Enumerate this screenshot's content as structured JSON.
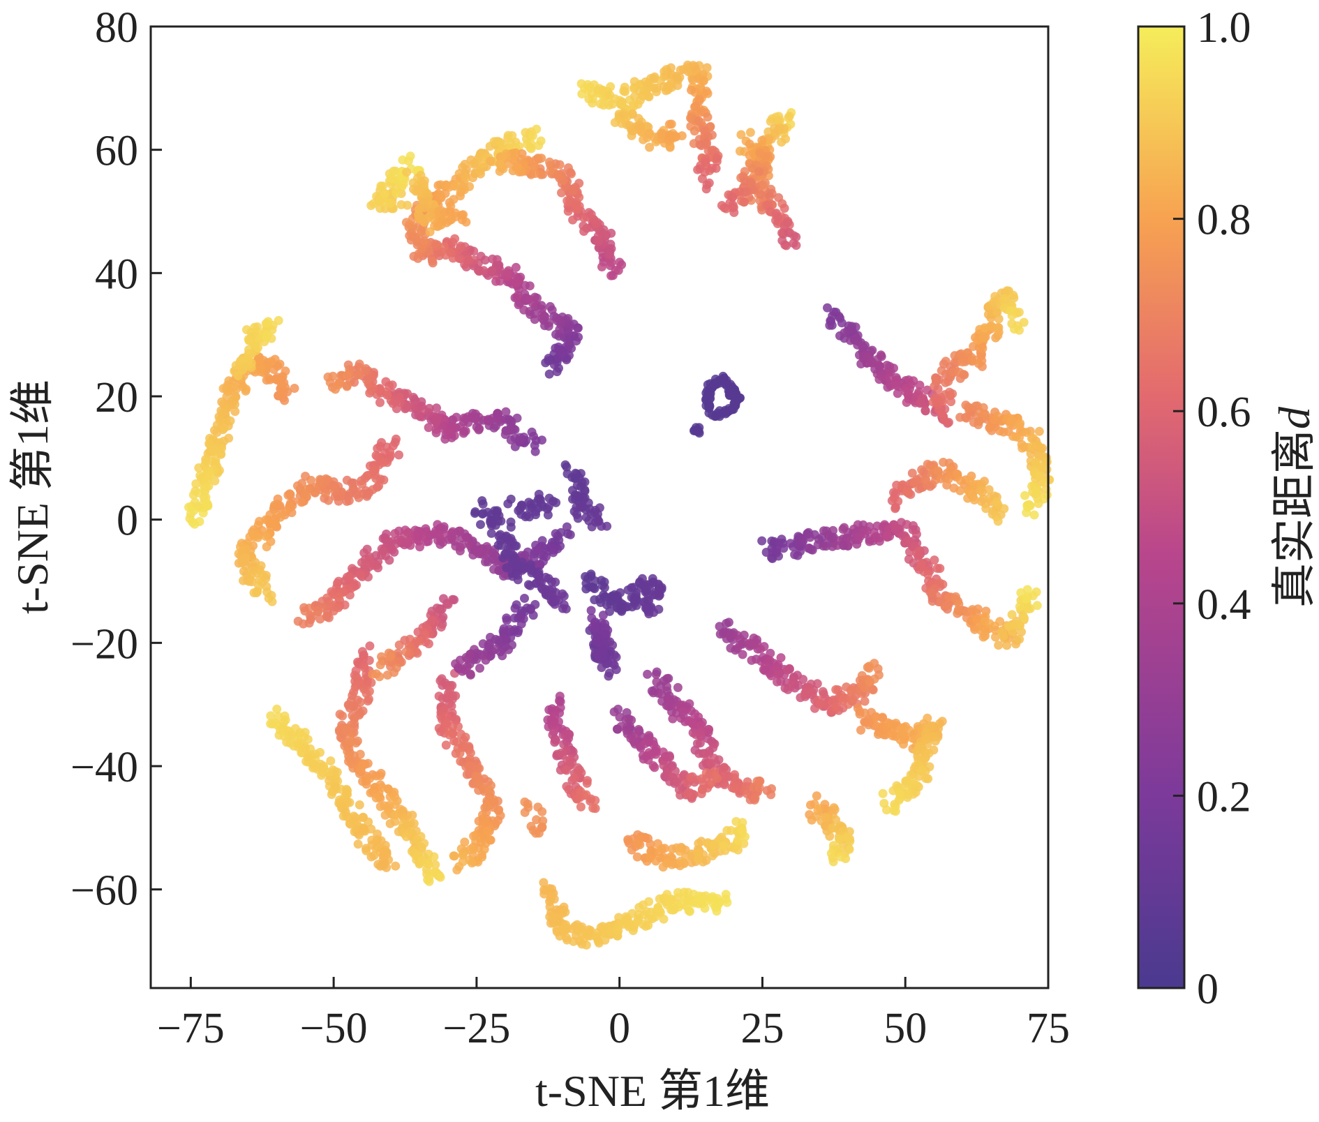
{
  "chart_data": {
    "type": "scatter",
    "xlabel": "t-SNE 第1维",
    "ylabel": "t-SNE 第1维",
    "xlim": [
      -82,
      75
    ],
    "ylim": [
      -76,
      80
    ],
    "xticks": [
      -75,
      -50,
      -25,
      0,
      25,
      50,
      75
    ],
    "yticks": [
      -60,
      -40,
      -20,
      0,
      20,
      40,
      60,
      80
    ],
    "xtick_labels": [
      "−75",
      "−50",
      "−25",
      "0",
      "25",
      "50",
      "75"
    ],
    "ytick_labels": [
      "−60",
      "−40",
      "−20",
      "0",
      "20",
      "40",
      "60",
      "80"
    ],
    "grid": false,
    "colormap": [
      "#4a3a8f",
      "#7c3a9a",
      "#b8468c",
      "#e36b6e",
      "#f7a251",
      "#f5ed5a"
    ],
    "colorbar": {
      "label": "真实距离",
      "label_var": "d",
      "range": [
        0,
        1
      ],
      "ticks": [
        0,
        0.2,
        0.4,
        0.6,
        0.8,
        1.0
      ],
      "tick_labels": [
        "0",
        "0.2",
        "0.4",
        "0.6",
        "0.8",
        "1.0"
      ]
    },
    "clusters": [
      {
        "name": "center-ring",
        "path": [
          [
            15.5,
            17.5
          ],
          [
            15.5,
            21.5
          ],
          [
            18,
            23
          ],
          [
            21,
            19.5
          ],
          [
            19,
            17.5
          ],
          [
            16.5,
            17
          ]
        ],
        "d": [
          0.05,
          0.05
        ]
      },
      {
        "name": "center-dot",
        "path": [
          [
            19.5,
            20.5
          ],
          [
            19.5,
            20.5
          ]
        ],
        "d": [
          0.05,
          0.05
        ]
      },
      {
        "name": "center-stray",
        "path": [
          [
            13.5,
            14.5
          ],
          [
            13.5,
            14.5
          ]
        ],
        "d": [
          0.05,
          0.05
        ]
      },
      {
        "name": "arm-n1",
        "path": [
          [
            -12,
            24
          ],
          [
            -8,
            30
          ],
          [
            -14,
            34
          ],
          [
            -20,
            40
          ],
          [
            -30,
            44
          ],
          [
            -35,
            43
          ]
        ],
        "d": [
          0.12,
          0.7
        ]
      },
      {
        "name": "arm-n1b",
        "path": [
          [
            -35,
            43
          ],
          [
            -36,
            50
          ],
          [
            -30,
            53
          ],
          [
            -22,
            60
          ],
          [
            -15,
            62
          ]
        ],
        "d": [
          0.7,
          0.95
        ]
      },
      {
        "name": "arm-n2",
        "path": [
          [
            -1,
            40
          ],
          [
            -3,
            46
          ],
          [
            -7,
            50
          ],
          [
            -10,
            56
          ],
          [
            -16,
            58
          ],
          [
            -22,
            58
          ]
        ],
        "d": [
          0.45,
          0.85
        ]
      },
      {
        "name": "arm-n3",
        "path": [
          [
            -38,
            52
          ],
          [
            -42,
            52
          ],
          [
            -36,
            58
          ]
        ],
        "d": [
          0.9,
          0.97
        ]
      },
      {
        "name": "arm-n4",
        "path": [
          [
            -36,
            56
          ],
          [
            -33,
            48
          ],
          [
            -28,
            50
          ]
        ],
        "d": [
          0.9,
          0.8
        ]
      },
      {
        "name": "arm-top",
        "path": [
          [
            -6,
            70
          ],
          [
            0,
            68
          ],
          [
            5,
            70
          ],
          [
            10,
            72
          ],
          [
            14,
            73
          ]
        ],
        "d": [
          0.95,
          0.85
        ]
      },
      {
        "name": "arm-top2",
        "path": [
          [
            14,
            72
          ],
          [
            14,
            64
          ],
          [
            16,
            58
          ],
          [
            15,
            55
          ]
        ],
        "d": [
          0.85,
          0.6
        ]
      },
      {
        "name": "arm-top3",
        "path": [
          [
            0,
            66
          ],
          [
            4,
            63
          ],
          [
            8,
            61
          ],
          [
            10,
            64
          ]
        ],
        "d": [
          0.9,
          0.8
        ]
      },
      {
        "name": "arm-nr",
        "path": [
          [
            29,
            66
          ],
          [
            27,
            62
          ],
          [
            25,
            58
          ],
          [
            24,
            54
          ],
          [
            28,
            49
          ],
          [
            30,
            45
          ]
        ],
        "d": [
          0.95,
          0.55
        ]
      },
      {
        "name": "arm-nr2",
        "path": [
          [
            22,
            62
          ],
          [
            25,
            58
          ],
          [
            21,
            52
          ],
          [
            19,
            50
          ]
        ],
        "d": [
          0.85,
          0.6
        ]
      },
      {
        "name": "arm-ne",
        "path": [
          [
            37,
            33
          ],
          [
            42,
            28
          ],
          [
            45,
            25
          ],
          [
            48,
            22
          ],
          [
            52,
            20
          ],
          [
            56,
            17
          ]
        ],
        "d": [
          0.2,
          0.55
        ]
      },
      {
        "name": "arm-ne2",
        "path": [
          [
            56,
            17
          ],
          [
            57,
            24
          ],
          [
            62,
            26
          ],
          [
            64,
            30
          ],
          [
            67,
            36
          ],
          [
            70,
            32
          ]
        ],
        "d": [
          0.6,
          0.95
        ]
      },
      {
        "name": "arm-e",
        "path": [
          [
            60,
            18
          ],
          [
            65,
            16
          ],
          [
            70,
            15
          ],
          [
            73,
            12
          ],
          [
            74,
            5
          ],
          [
            72,
            2
          ]
        ],
        "d": [
          0.7,
          0.97
        ]
      },
      {
        "name": "arm-e2",
        "path": [
          [
            48,
            3
          ],
          [
            52,
            6
          ],
          [
            56,
            8
          ],
          [
            60,
            6
          ],
          [
            64,
            4
          ],
          [
            66,
            1
          ]
        ],
        "d": [
          0.6,
          0.9
        ]
      },
      {
        "name": "arm-e3",
        "path": [
          [
            26,
            -5
          ],
          [
            32,
            -4
          ],
          [
            38,
            -3
          ],
          [
            44,
            -2
          ],
          [
            50,
            -2
          ],
          [
            54,
            -8
          ]
        ],
        "d": [
          0.15,
          0.6
        ]
      },
      {
        "name": "arm-e4",
        "path": [
          [
            54,
            -8
          ],
          [
            56,
            -13
          ],
          [
            60,
            -14
          ],
          [
            64,
            -17
          ],
          [
            68,
            -19
          ],
          [
            72,
            -12
          ]
        ],
        "d": [
          0.6,
          0.97
        ]
      },
      {
        "name": "arm-se",
        "path": [
          [
            18,
            -18
          ],
          [
            25,
            -22
          ],
          [
            30,
            -26
          ],
          [
            36,
            -30
          ],
          [
            42,
            -28
          ],
          [
            45,
            -24
          ]
        ],
        "d": [
          0.3,
          0.75
        ]
      },
      {
        "name": "arm-se2",
        "path": [
          [
            42,
            -32
          ],
          [
            48,
            -34
          ],
          [
            52,
            -36
          ],
          [
            55,
            -33
          ],
          [
            52,
            -42
          ],
          [
            47,
            -46
          ]
        ],
        "d": [
          0.75,
          0.95
        ]
      },
      {
        "name": "arm-se3",
        "path": [
          [
            34,
            -46
          ],
          [
            38,
            -50
          ],
          [
            40,
            -53
          ],
          [
            38,
            -55
          ]
        ],
        "d": [
          0.8,
          0.95
        ]
      },
      {
        "name": "arm-s1",
        "path": [
          [
            6,
            -26
          ],
          [
            10,
            -30
          ],
          [
            14,
            -34
          ],
          [
            16,
            -40
          ],
          [
            22,
            -44
          ],
          [
            26,
            -44
          ]
        ],
        "d": [
          0.3,
          0.7
        ]
      },
      {
        "name": "arm-s2",
        "path": [
          [
            0,
            -32
          ],
          [
            4,
            -36
          ],
          [
            8,
            -40
          ],
          [
            12,
            -44
          ],
          [
            16,
            -42
          ]
        ],
        "d": [
          0.3,
          0.65
        ]
      },
      {
        "name": "arm-s3",
        "path": [
          [
            2,
            -52
          ],
          [
            6,
            -54
          ],
          [
            10,
            -55
          ],
          [
            20,
            -52
          ],
          [
            22,
            -50
          ]
        ],
        "d": [
          0.75,
          0.95
        ]
      },
      {
        "name": "arm-s4",
        "path": [
          [
            -12,
            -60
          ],
          [
            -10,
            -66
          ],
          [
            -5,
            -68
          ],
          [
            0,
            -66
          ],
          [
            5,
            -64
          ],
          [
            10,
            -62
          ],
          [
            18,
            -62
          ]
        ],
        "d": [
          0.85,
          0.97
        ]
      },
      {
        "name": "arm-sw1",
        "path": [
          [
            -12,
            -30
          ],
          [
            -10,
            -36
          ],
          [
            -8,
            -42
          ],
          [
            -5,
            -46
          ]
        ],
        "d": [
          0.4,
          0.65
        ]
      },
      {
        "name": "arm-sw1b",
        "path": [
          [
            -15,
            -47
          ],
          [
            -15,
            -50
          ]
        ],
        "d": [
          0.75,
          0.75
        ]
      },
      {
        "name": "arm-sw2",
        "path": [
          [
            -30,
            -26
          ],
          [
            -30,
            -34
          ],
          [
            -26,
            -40
          ],
          [
            -22,
            -46
          ],
          [
            -24,
            -52
          ],
          [
            -28,
            -56
          ]
        ],
        "d": [
          0.55,
          0.85
        ]
      },
      {
        "name": "arm-sw3",
        "path": [
          [
            -45,
            -22
          ],
          [
            -45,
            -28
          ],
          [
            -48,
            -34
          ],
          [
            -45,
            -40
          ],
          [
            -40,
            -46
          ],
          [
            -36,
            -52
          ],
          [
            -32,
            -58
          ]
        ],
        "d": [
          0.6,
          0.95
        ]
      },
      {
        "name": "arm-sw4",
        "path": [
          [
            -60,
            -32
          ],
          [
            -56,
            -36
          ],
          [
            -52,
            -40
          ],
          [
            -48,
            -46
          ],
          [
            -44,
            -52
          ],
          [
            -40,
            -56
          ]
        ],
        "d": [
          0.95,
          0.85
        ]
      },
      {
        "name": "arm-w1",
        "path": [
          [
            -10,
            -2
          ],
          [
            -14,
            -6
          ],
          [
            -20,
            -8
          ],
          [
            -26,
            -4
          ],
          [
            -32,
            -2
          ],
          [
            -40,
            -4
          ],
          [
            -45,
            -8
          ],
          [
            -50,
            -14
          ],
          [
            -55,
            -16
          ]
        ],
        "d": [
          0.15,
          0.7
        ]
      },
      {
        "name": "arm-w1b",
        "path": [
          [
            -30,
            -14
          ],
          [
            -34,
            -18
          ],
          [
            -38,
            -22
          ],
          [
            -42,
            -24
          ]
        ],
        "d": [
          0.5,
          0.75
        ]
      },
      {
        "name": "arm-w2",
        "path": [
          [
            -15,
            12
          ],
          [
            -20,
            16
          ],
          [
            -25,
            16
          ],
          [
            -30,
            14
          ],
          [
            -35,
            18
          ],
          [
            -40,
            20
          ],
          [
            -46,
            24
          ],
          [
            -50,
            22
          ]
        ],
        "d": [
          0.2,
          0.75
        ]
      },
      {
        "name": "arm-w3",
        "path": [
          [
            -40,
            12
          ],
          [
            -44,
            6
          ],
          [
            -48,
            4
          ],
          [
            -54,
            6
          ],
          [
            -58,
            2
          ],
          [
            -62,
            -2
          ],
          [
            -66,
            -6
          ],
          [
            -62,
            -12
          ]
        ],
        "d": [
          0.6,
          0.9
        ]
      },
      {
        "name": "arm-w4",
        "path": [
          [
            -58,
            20
          ],
          [
            -62,
            26
          ],
          [
            -66,
            24
          ],
          [
            -70,
            14
          ],
          [
            -72,
            8
          ],
          [
            -74,
            0
          ]
        ],
        "d": [
          0.75,
          0.97
        ]
      },
      {
        "name": "arm-w5",
        "path": [
          [
            -66,
            24
          ],
          [
            -64,
            30
          ],
          [
            -60,
            31
          ]
        ],
        "d": [
          0.9,
          0.95
        ]
      },
      {
        "name": "core-1",
        "path": [
          [
            -24,
            2
          ],
          [
            -20,
            -2
          ],
          [
            -18,
            -8
          ],
          [
            -14,
            -10
          ],
          [
            -10,
            -14
          ]
        ],
        "d": [
          0.08,
          0.15
        ]
      },
      {
        "name": "core-2",
        "path": [
          [
            -8,
            8
          ],
          [
            -7,
            3
          ],
          [
            -6,
            1
          ],
          [
            -3,
            0
          ]
        ],
        "d": [
          0.08,
          0.12
        ]
      },
      {
        "name": "core-3",
        "path": [
          [
            -18,
            2
          ],
          [
            -15,
            2
          ],
          [
            -12,
            3
          ]
        ],
        "d": [
          0.1,
          0.1
        ]
      },
      {
        "name": "core-4",
        "path": [
          [
            -6,
            -10
          ],
          [
            -3,
            -12
          ],
          [
            0,
            -14
          ],
          [
            4,
            -12
          ],
          [
            6,
            -10
          ],
          [
            6,
            -16
          ]
        ],
        "d": [
          0.08,
          0.12
        ]
      },
      {
        "name": "core-5",
        "path": [
          [
            -4,
            -18
          ],
          [
            -3,
            -22
          ],
          [
            -2,
            -24
          ],
          [
            -4,
            -16
          ]
        ],
        "d": [
          0.1,
          0.2
        ]
      },
      {
        "name": "core-6",
        "path": [
          [
            -16,
            -14
          ],
          [
            -20,
            -20
          ],
          [
            -24,
            -22
          ],
          [
            -28,
            -24
          ]
        ],
        "d": [
          0.15,
          0.35
        ]
      }
    ]
  }
}
